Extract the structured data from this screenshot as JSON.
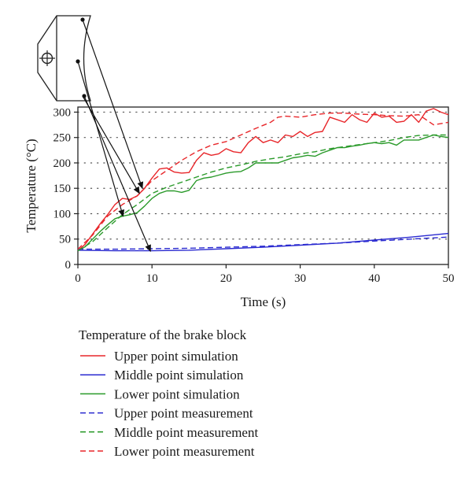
{
  "chart_data": {
    "type": "line",
    "title": "",
    "xlabel": "Time (s)",
    "ylabel": "Temperature (°C)",
    "xlim": [
      0,
      50
    ],
    "ylim": [
      0,
      310
    ],
    "xticks": [
      0,
      10,
      20,
      30,
      40,
      50
    ],
    "yticks": [
      0,
      50,
      100,
      150,
      200,
      250,
      300
    ],
    "grid": "horizontal-dotted",
    "legend_title": "Temperature of the brake block",
    "legend_position": "below",
    "series": [
      {
        "name": "Upper point simulation",
        "color": "#e8262a",
        "dash": "solid",
        "points": [
          [
            0,
            27
          ],
          [
            1,
            40
          ],
          [
            2,
            60
          ],
          [
            3,
            80
          ],
          [
            4,
            98
          ],
          [
            5,
            118
          ],
          [
            6,
            130
          ],
          [
            7,
            128
          ],
          [
            8,
            135
          ],
          [
            9,
            150
          ],
          [
            10,
            170
          ],
          [
            11,
            188
          ],
          [
            12,
            190
          ],
          [
            13,
            182
          ],
          [
            14,
            180
          ],
          [
            15,
            181
          ],
          [
            16,
            205
          ],
          [
            17,
            220
          ],
          [
            18,
            215
          ],
          [
            19,
            218
          ],
          [
            20,
            228
          ],
          [
            21,
            222
          ],
          [
            22,
            220
          ],
          [
            23,
            240
          ],
          [
            24,
            252
          ],
          [
            25,
            240
          ],
          [
            26,
            245
          ],
          [
            27,
            240
          ],
          [
            28,
            255
          ],
          [
            29,
            252
          ],
          [
            30,
            262
          ],
          [
            31,
            252
          ],
          [
            32,
            260
          ],
          [
            33,
            262
          ],
          [
            34,
            290
          ],
          [
            35,
            285
          ],
          [
            36,
            280
          ],
          [
            37,
            295
          ],
          [
            38,
            285
          ],
          [
            39,
            280
          ],
          [
            40,
            298
          ],
          [
            41,
            290
          ],
          [
            42,
            292
          ],
          [
            43,
            280
          ],
          [
            44,
            282
          ],
          [
            45,
            295
          ],
          [
            46,
            280
          ],
          [
            47,
            302
          ],
          [
            48,
            307
          ],
          [
            49,
            300
          ],
          [
            50,
            295
          ]
        ]
      },
      {
        "name": "Middle point simulation",
        "color": "#2a2ad0",
        "dash": "solid",
        "points": [
          [
            0,
            28
          ],
          [
            5,
            27
          ],
          [
            10,
            27
          ],
          [
            15,
            28
          ],
          [
            20,
            31
          ],
          [
            25,
            34
          ],
          [
            30,
            38
          ],
          [
            35,
            42
          ],
          [
            40,
            48
          ],
          [
            45,
            54
          ],
          [
            50,
            61
          ]
        ]
      },
      {
        "name": "Lower point simulation",
        "color": "#2a9a2a",
        "dash": "solid",
        "points": [
          [
            0,
            27
          ],
          [
            1,
            35
          ],
          [
            2,
            50
          ],
          [
            3,
            65
          ],
          [
            4,
            78
          ],
          [
            5,
            90
          ],
          [
            6,
            95
          ],
          [
            7,
            98
          ],
          [
            8,
            102
          ],
          [
            9,
            115
          ],
          [
            10,
            130
          ],
          [
            11,
            140
          ],
          [
            12,
            145
          ],
          [
            13,
            145
          ],
          [
            14,
            142
          ],
          [
            15,
            146
          ],
          [
            16,
            165
          ],
          [
            17,
            170
          ],
          [
            18,
            172
          ],
          [
            19,
            176
          ],
          [
            20,
            180
          ],
          [
            21,
            182
          ],
          [
            22,
            183
          ],
          [
            23,
            190
          ],
          [
            24,
            200
          ],
          [
            25,
            200
          ],
          [
            26,
            200
          ],
          [
            27,
            200
          ],
          [
            28,
            205
          ],
          [
            29,
            210
          ],
          [
            30,
            212
          ],
          [
            31,
            215
          ],
          [
            32,
            213
          ],
          [
            33,
            220
          ],
          [
            34,
            225
          ],
          [
            35,
            230
          ],
          [
            36,
            230
          ],
          [
            37,
            233
          ],
          [
            38,
            235
          ],
          [
            39,
            238
          ],
          [
            40,
            240
          ],
          [
            41,
            238
          ],
          [
            42,
            240
          ],
          [
            43,
            235
          ],
          [
            44,
            245
          ],
          [
            45,
            245
          ],
          [
            46,
            245
          ],
          [
            47,
            250
          ],
          [
            48,
            255
          ],
          [
            49,
            252
          ],
          [
            50,
            250
          ]
        ]
      },
      {
        "name": "Upper point measurement",
        "color": "#2a2ad0",
        "dash": "dashed",
        "points": [
          [
            0,
            30
          ],
          [
            5,
            30
          ],
          [
            10,
            31
          ],
          [
            15,
            32
          ],
          [
            20,
            34
          ],
          [
            25,
            36
          ],
          [
            30,
            39
          ],
          [
            35,
            42
          ],
          [
            40,
            46
          ],
          [
            45,
            50
          ],
          [
            50,
            54
          ]
        ]
      },
      {
        "name": "Middle point measurement",
        "color": "#2a9a2a",
        "dash": "dashed",
        "points": [
          [
            0,
            27
          ],
          [
            2,
            45
          ],
          [
            4,
            72
          ],
          [
            6,
            98
          ],
          [
            8,
            118
          ],
          [
            10,
            140
          ],
          [
            12,
            152
          ],
          [
            14,
            162
          ],
          [
            16,
            172
          ],
          [
            18,
            182
          ],
          [
            20,
            190
          ],
          [
            22,
            196
          ],
          [
            24,
            203
          ],
          [
            26,
            208
          ],
          [
            28,
            212
          ],
          [
            30,
            218
          ],
          [
            32,
            222
          ],
          [
            34,
            228
          ],
          [
            36,
            232
          ],
          [
            38,
            236
          ],
          [
            40,
            240
          ],
          [
            42,
            244
          ],
          [
            44,
            250
          ],
          [
            46,
            254
          ],
          [
            48,
            255
          ],
          [
            50,
            255
          ]
        ]
      },
      {
        "name": "Lower point measurement",
        "color": "#e8262a",
        "dash": "dashed",
        "points": [
          [
            0,
            30
          ],
          [
            2,
            58
          ],
          [
            4,
            95
          ],
          [
            6,
            118
          ],
          [
            8,
            135
          ],
          [
            10,
            165
          ],
          [
            12,
            185
          ],
          [
            14,
            205
          ],
          [
            16,
            222
          ],
          [
            18,
            235
          ],
          [
            20,
            242
          ],
          [
            22,
            255
          ],
          [
            24,
            268
          ],
          [
            26,
            280
          ],
          [
            27,
            290
          ],
          [
            28,
            292
          ],
          [
            30,
            290
          ],
          [
            32,
            295
          ],
          [
            34,
            298
          ],
          [
            36,
            298
          ],
          [
            38,
            296
          ],
          [
            40,
            295
          ],
          [
            42,
            293
          ],
          [
            44,
            292
          ],
          [
            46,
            295
          ],
          [
            48,
            275
          ],
          [
            50,
            280
          ]
        ]
      }
    ]
  }
}
